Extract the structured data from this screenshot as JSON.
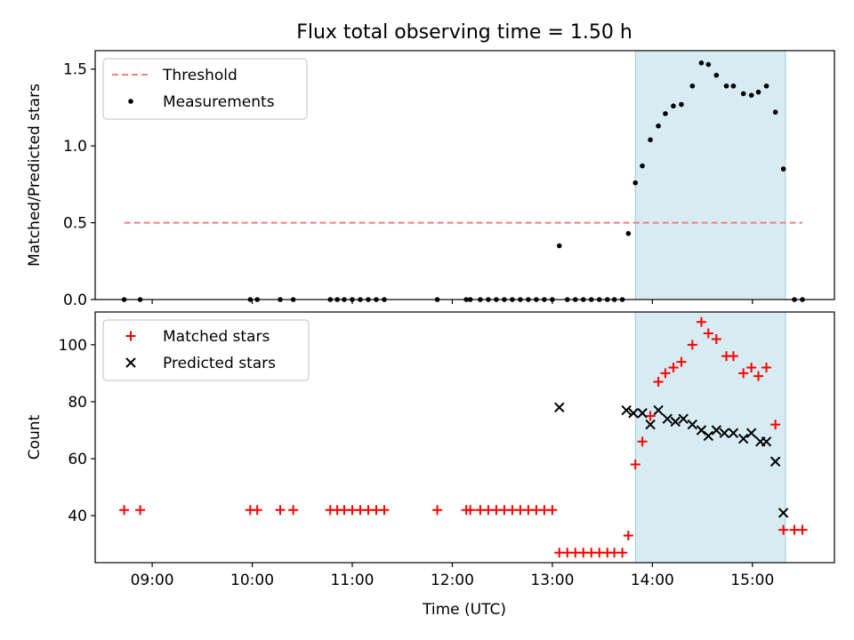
{
  "chart_data": {
    "title": "Flux total observing time = 1.50 h",
    "x_unit": "hours (UTC)",
    "xlim": [
      8.43,
      15.82
    ],
    "xticks": [
      {
        "value": 9,
        "label": "09:00"
      },
      {
        "value": 10,
        "label": "10:00"
      },
      {
        "value": 11,
        "label": "11:00"
      },
      {
        "value": 12,
        "label": "12:00"
      },
      {
        "value": 13,
        "label": "13:00"
      },
      {
        "value": 14,
        "label": "14:00"
      },
      {
        "value": 15,
        "label": "15:00"
      }
    ],
    "xlabel": "Time (UTC)",
    "shaded_span": {
      "x": [
        13.83,
        15.33
      ],
      "color": "#add8e6",
      "alpha": 0.5
    },
    "panels": [
      {
        "type": "scatter",
        "ylabel": "Matched/Predicted stars",
        "ylim": [
          0,
          1.62
        ],
        "yticks": [
          {
            "value": 0,
            "label": "0.0"
          },
          {
            "value": 0.5,
            "label": "0.5"
          },
          {
            "value": 1.0,
            "label": "1.0"
          },
          {
            "value": 1.5,
            "label": "1.5"
          }
        ],
        "legend_position": "upper-left",
        "threshold": {
          "name": "Threshold",
          "y": 0.5,
          "x": [
            8.72,
            15.5
          ],
          "color": "#f08080",
          "style": "dashed"
        },
        "series": [
          {
            "name": "Measurements",
            "marker": "dot",
            "color": "#000000",
            "x": [
              8.72,
              8.88,
              9.98,
              10.05,
              10.28,
              10.41,
              10.78,
              10.85,
              10.92,
              11.0,
              11.08,
              11.16,
              11.24,
              11.32,
              11.85,
              12.14,
              12.18,
              12.28,
              12.36,
              12.44,
              12.52,
              12.6,
              12.68,
              12.76,
              12.84,
              12.92,
              13.0,
              13.07,
              13.15,
              13.23,
              13.31,
              13.39,
              13.47,
              13.55,
              13.62,
              13.7,
              13.76,
              13.83,
              13.9,
              13.98,
              14.06,
              14.13,
              14.21,
              14.29,
              14.4,
              14.49,
              14.56,
              14.64,
              14.74,
              14.81,
              14.91,
              14.99,
              15.06,
              15.14,
              15.23,
              15.31,
              15.42,
              15.5
            ],
            "y": [
              0,
              0,
              0,
              0,
              0,
              0,
              0,
              0,
              0,
              0,
              0,
              0,
              0,
              0,
              0,
              0,
              0,
              0,
              0,
              0,
              0,
              0,
              0,
              0,
              0,
              0,
              0,
              0.35,
              0,
              0,
              0,
              0,
              0,
              0,
              0,
              0,
              0.43,
              0.76,
              0.87,
              1.04,
              1.13,
              1.21,
              1.26,
              1.27,
              1.39,
              1.54,
              1.53,
              1.46,
              1.39,
              1.39,
              1.34,
              1.33,
              1.35,
              1.39,
              1.22,
              0.85,
              0,
              0
            ]
          }
        ]
      },
      {
        "type": "scatter",
        "ylabel": "Count",
        "ylim": [
          23.5,
          111.5
        ],
        "yticks": [
          {
            "value": 40,
            "label": "40"
          },
          {
            "value": 60,
            "label": "60"
          },
          {
            "value": 80,
            "label": "80"
          },
          {
            "value": 100,
            "label": "100"
          }
        ],
        "legend_position": "upper-left",
        "series": [
          {
            "name": "Matched stars",
            "marker": "plus",
            "color": "#ff0000",
            "x": [
              8.72,
              8.88,
              9.98,
              10.05,
              10.28,
              10.41,
              10.78,
              10.85,
              10.92,
              11.0,
              11.08,
              11.16,
              11.24,
              11.32,
              11.85,
              12.14,
              12.18,
              12.28,
              12.36,
              12.44,
              12.52,
              12.6,
              12.68,
              12.76,
              12.84,
              12.92,
              13.0,
              13.07,
              13.15,
              13.23,
              13.31,
              13.39,
              13.47,
              13.55,
              13.62,
              13.7,
              13.76,
              13.83,
              13.9,
              13.98,
              14.06,
              14.13,
              14.21,
              14.29,
              14.4,
              14.49,
              14.56,
              14.64,
              14.74,
              14.81,
              14.91,
              14.99,
              15.06,
              15.14,
              15.23,
              15.31,
              15.42,
              15.5
            ],
            "y": [
              42,
              42,
              42,
              42,
              42,
              42,
              42,
              42,
              42,
              42,
              42,
              42,
              42,
              42,
              42,
              42,
              42,
              42,
              42,
              42,
              42,
              42,
              42,
              42,
              42,
              42,
              42,
              27,
              27,
              27,
              27,
              27,
              27,
              27,
              27,
              27,
              33,
              58,
              66,
              75,
              87,
              90,
              92,
              94,
              100,
              108,
              104,
              102,
              96,
              96,
              90,
              92,
              89,
              92,
              72,
              35,
              35,
              35
            ]
          },
          {
            "name": "Predicted stars",
            "marker": "x",
            "color": "#000000",
            "x": [
              13.07,
              13.74,
              13.81,
              13.9,
              13.98,
              14.06,
              14.15,
              14.23,
              14.31,
              14.4,
              14.49,
              14.56,
              14.64,
              14.72,
              14.81,
              14.91,
              14.99,
              15.08,
              15.14,
              15.23,
              15.31
            ],
            "y": [
              78,
              77,
              76,
              76,
              72,
              77,
              74,
              73,
              74,
              72,
              70,
              68,
              70,
              69,
              69,
              67,
              69,
              66,
              66,
              59,
              41
            ]
          }
        ]
      }
    ]
  }
}
